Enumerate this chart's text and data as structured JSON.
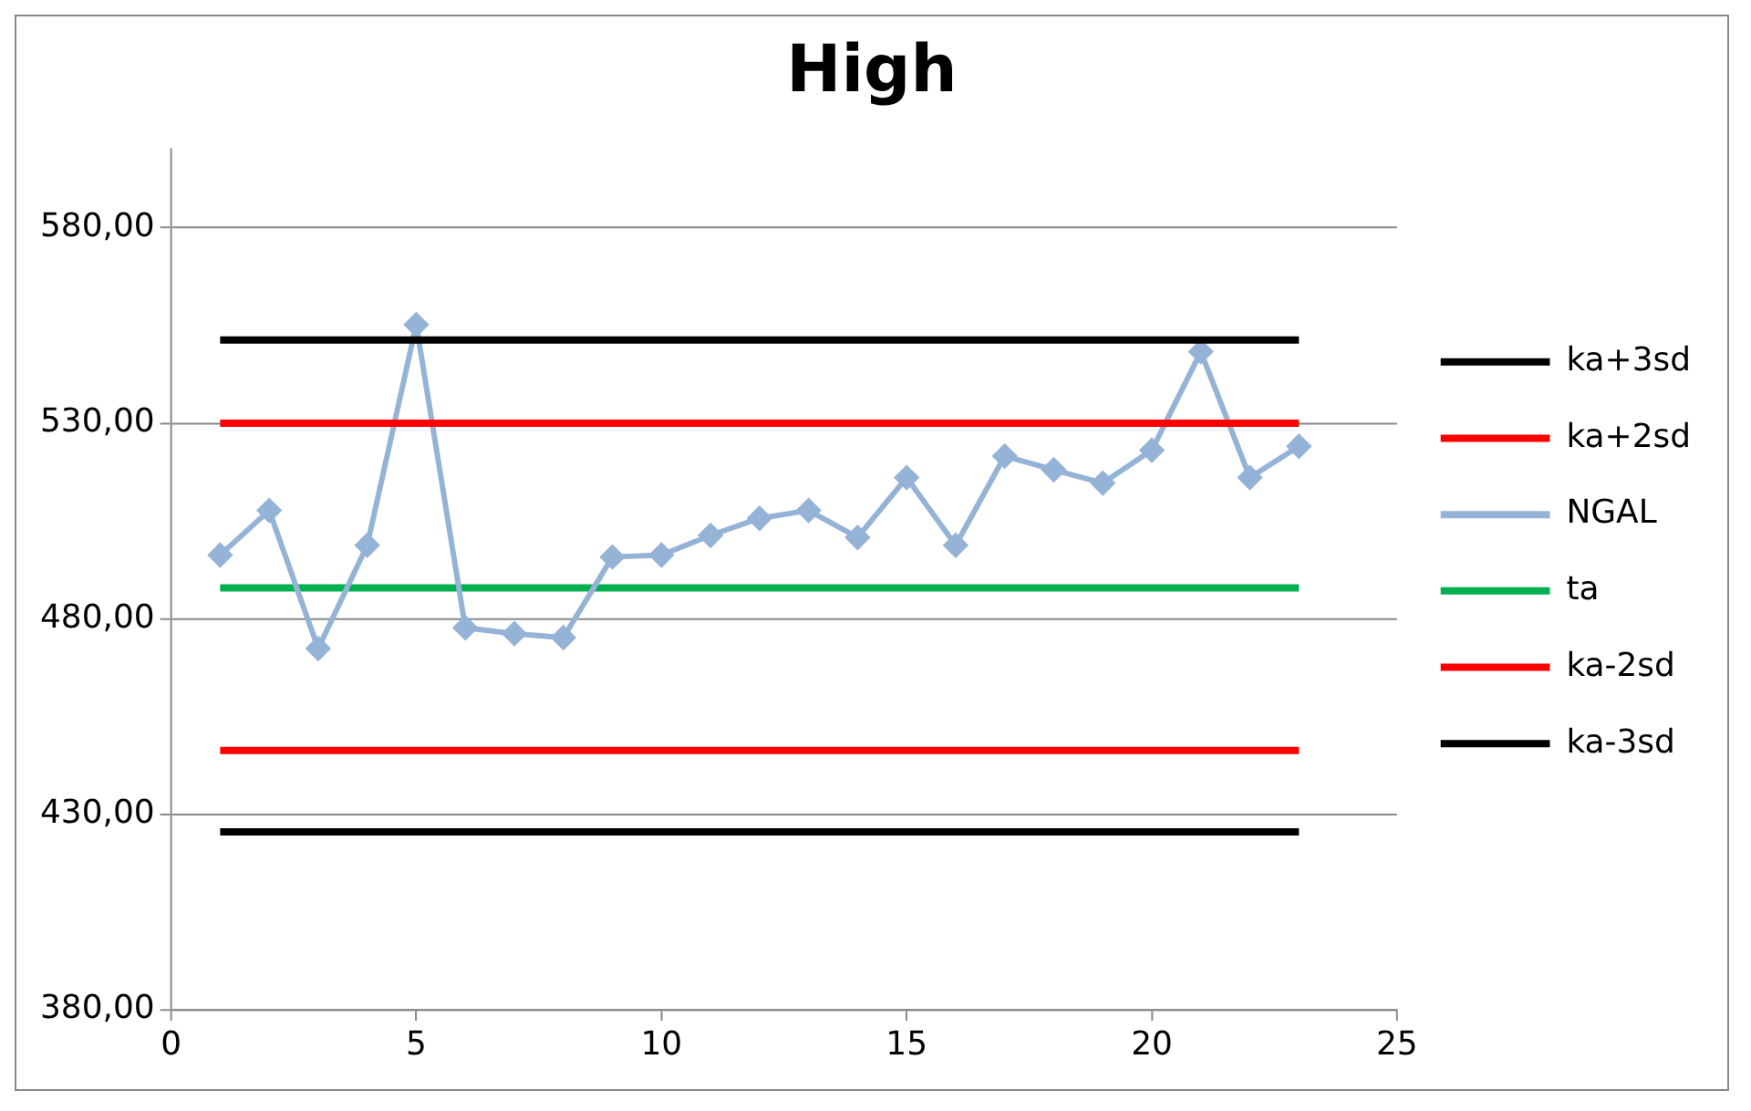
{
  "chart_data": {
    "type": "line",
    "title": "High",
    "xlim": [
      0,
      25
    ],
    "xticks": [
      0,
      5,
      10,
      15,
      20,
      25
    ],
    "ylim": [
      380,
      600
    ],
    "yticks": [
      {
        "value": 380,
        "label": "380,00"
      },
      {
        "value": 430,
        "label": "430,00"
      },
      {
        "value": 480,
        "label": "480,00"
      },
      {
        "value": 530,
        "label": "530,00"
      },
      {
        "value": 580,
        "label": "580,00"
      }
    ],
    "grid": "y",
    "legend": "right",
    "line_style": "solid",
    "series": [
      {
        "name": "ka+3sd",
        "color": "#000000",
        "marker": "none",
        "x": [
          1,
          23
        ],
        "values": [
          551.3,
          551.3
        ]
      },
      {
        "name": "ka+2sd",
        "color": "#ff0000",
        "marker": "none",
        "x": [
          1,
          23
        ],
        "values": [
          530,
          530
        ]
      },
      {
        "name": "NGAL",
        "color": "#95b3d7",
        "marker": "diamond",
        "x": [
          1,
          2,
          3,
          4,
          5,
          6,
          7,
          8,
          9,
          10,
          11,
          12,
          13,
          14,
          15,
          16,
          17,
          18,
          19,
          20,
          21,
          22,
          23
        ],
        "values": [
          496.3,
          507.7,
          472.4,
          498.8,
          555.2,
          477.7,
          476.2,
          475.2,
          495.8,
          496.3,
          501.3,
          505.7,
          507.7,
          500.8,
          516.1,
          498.8,
          521.6,
          518.1,
          514.7,
          523.1,
          548.3,
          516.1,
          524.1
        ]
      },
      {
        "name": "ta",
        "color": "#00b050",
        "marker": "none",
        "x": [
          1,
          23
        ],
        "values": [
          487.9,
          487.9
        ]
      },
      {
        "name": "ka-2sd",
        "color": "#ff0000",
        "marker": "none",
        "x": [
          1,
          23
        ],
        "values": [
          446.3,
          446.3
        ]
      },
      {
        "name": "ka-3sd",
        "color": "#000000",
        "marker": "none",
        "x": [
          1,
          23
        ],
        "values": [
          425.5,
          425.5
        ]
      }
    ]
  }
}
